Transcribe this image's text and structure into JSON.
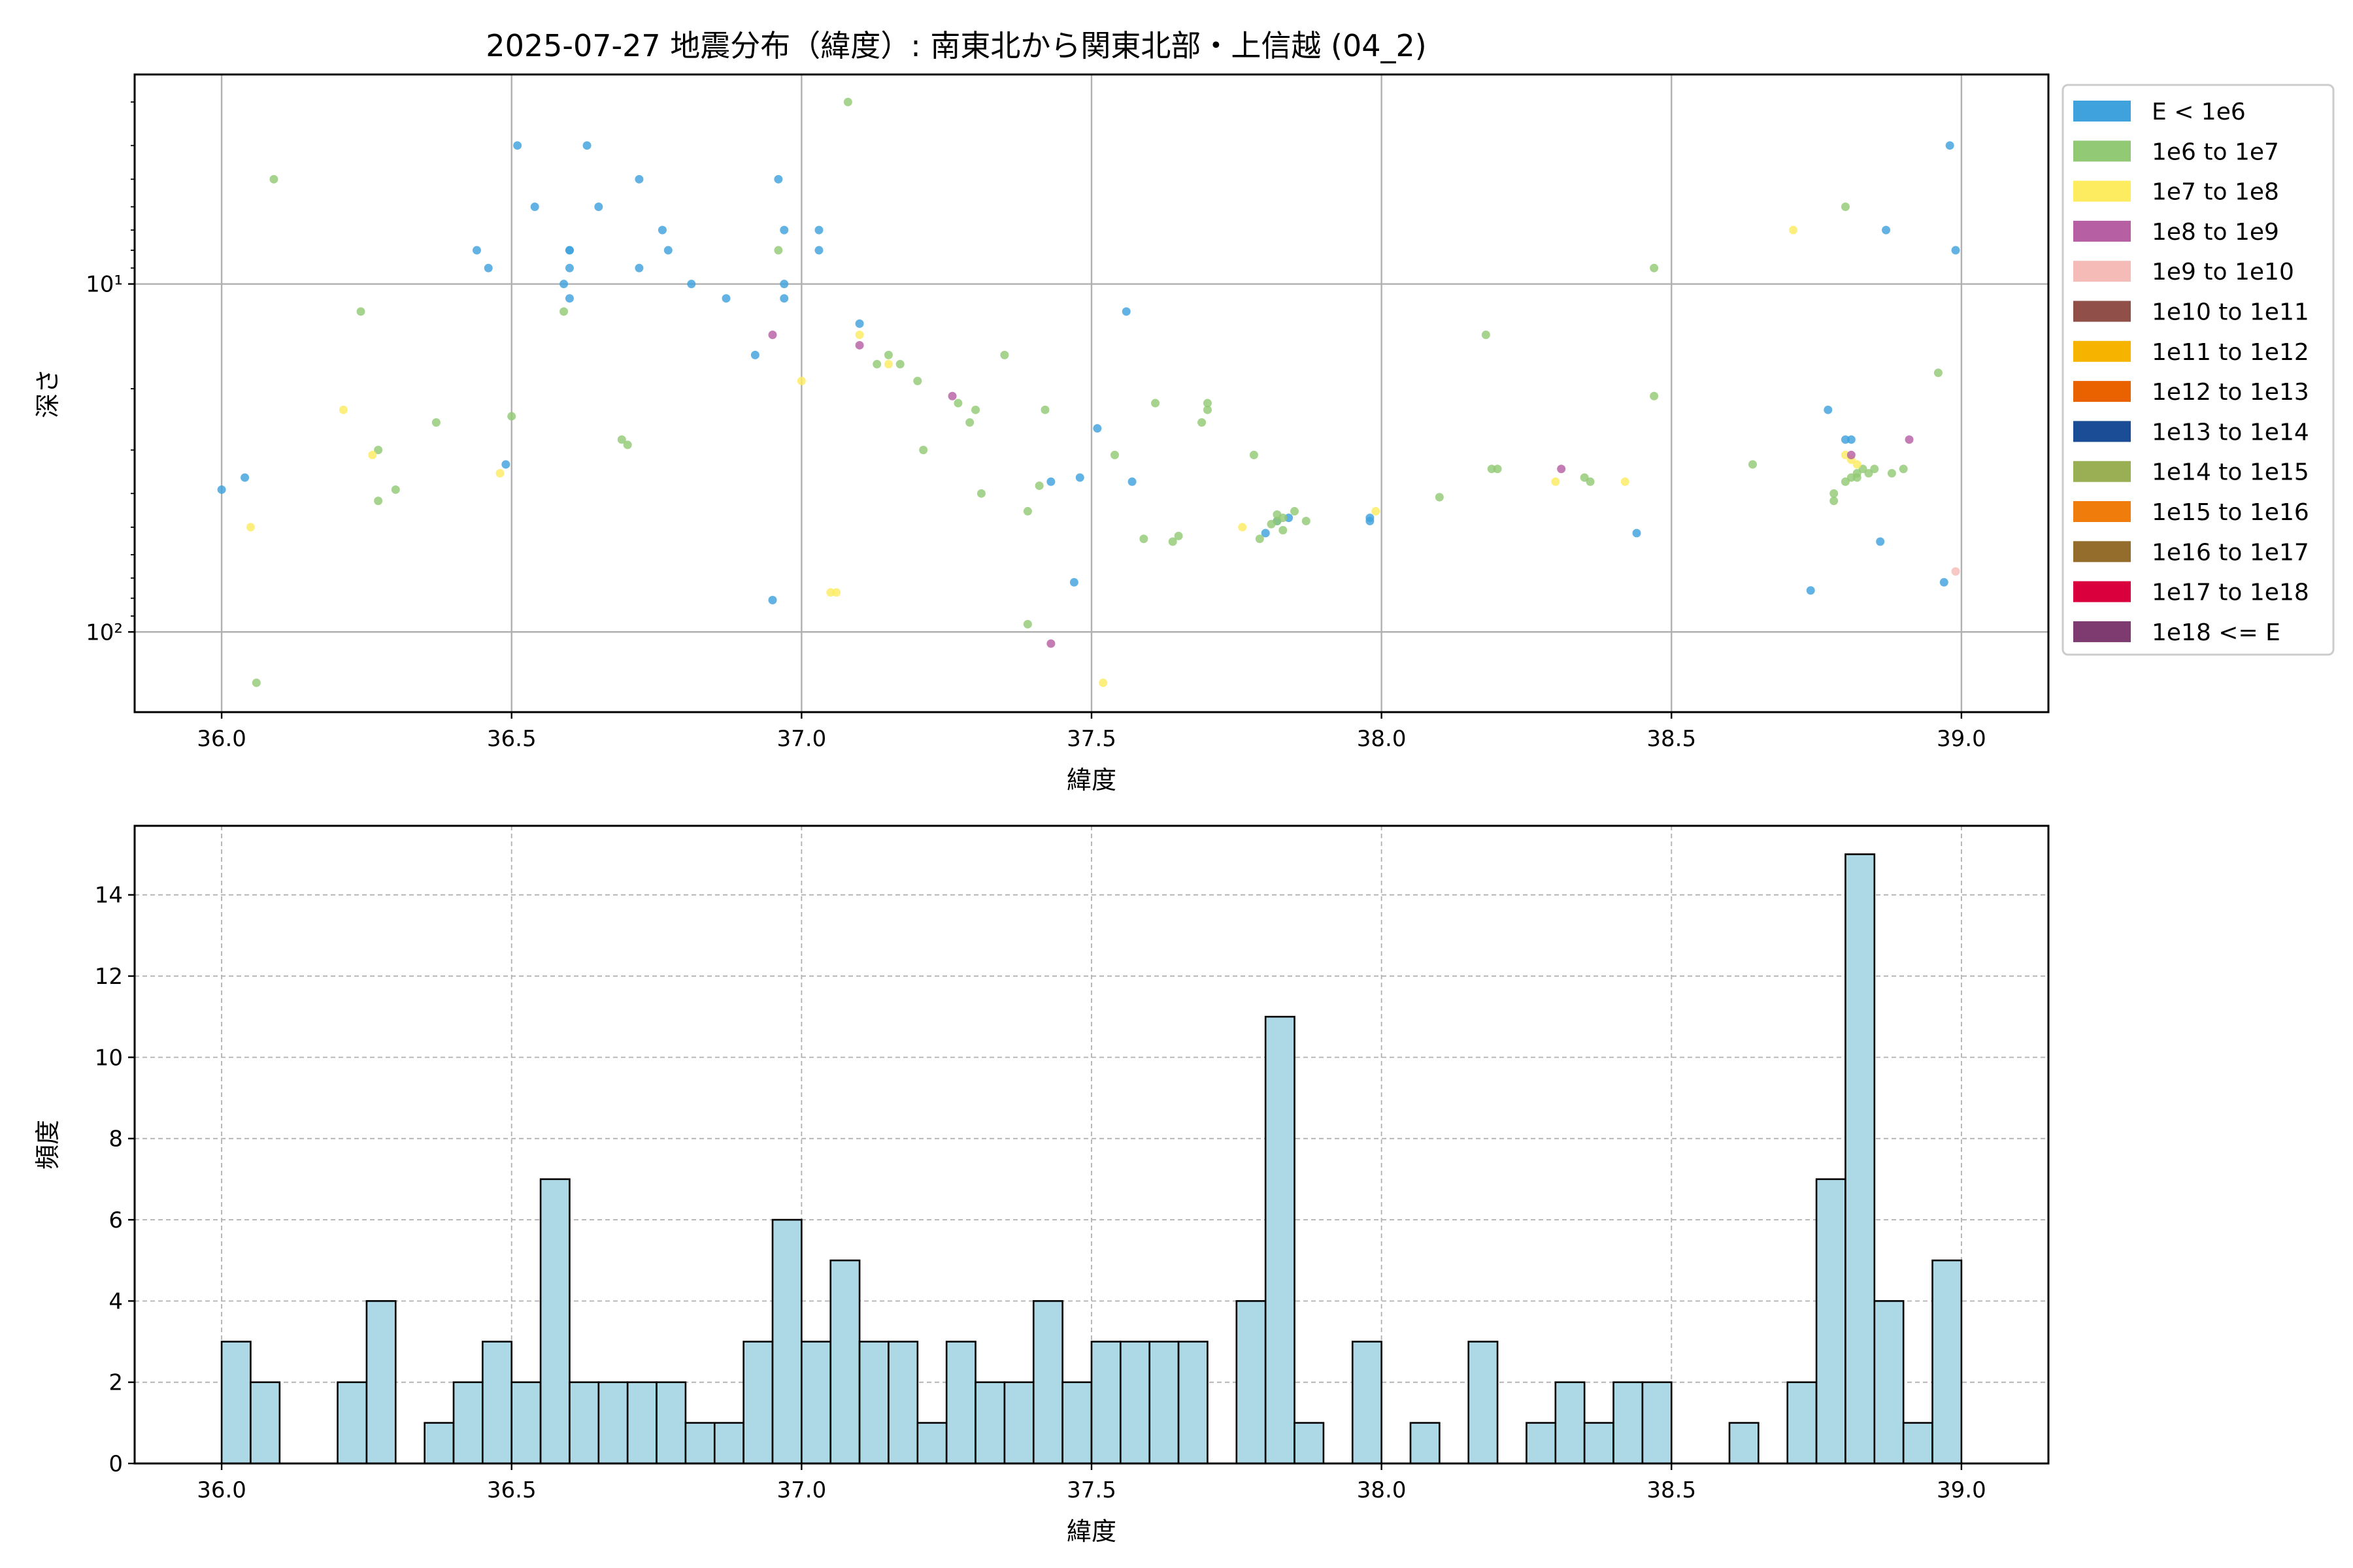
{
  "title": "2025-07-27 地震分布（緯度）: 南東北から関東北部・上信越 (04_2)",
  "chart_data": [
    {
      "type": "scatter",
      "xlabel": "緯度",
      "ylabel": "深さ",
      "yscale": "log",
      "yinverted": true,
      "xlim": [
        35.85,
        39.15
      ],
      "ylim": [
        170,
        2.5
      ],
      "grid": true,
      "legend_position": "right-outside",
      "x_ticks": [
        36.0,
        36.5,
        37.0,
        37.5,
        38.0,
        38.5,
        39.0
      ],
      "x_tick_labels": [
        "36.0",
        "36.5",
        "37.0",
        "37.5",
        "38.0",
        "38.5",
        "39.0"
      ],
      "y_ticks": [
        100,
        10
      ],
      "y_tick_labels": [
        "10²",
        "10¹"
      ],
      "legend": [
        {
          "label": "E < 1e6",
          "color": "#3fa2dd"
        },
        {
          "label": "1e6 to 1e7",
          "color": "#92c974"
        },
        {
          "label": "1e7 to 1e8",
          "color": "#fdec60"
        },
        {
          "label": "1e8 to 1e9",
          "color": "#b660a3"
        },
        {
          "label": "1e9 to 1e10",
          "color": "#f5bcb7"
        },
        {
          "label": "1e10 to 1e11",
          "color": "#914f4a"
        },
        {
          "label": "1e11 to 1e12",
          "color": "#f6b400"
        },
        {
          "label": "1e12 to 1e13",
          "color": "#ea6200"
        },
        {
          "label": "1e13 to 1e14",
          "color": "#1a4d96"
        },
        {
          "label": "1e14 to 1e15",
          "color": "#9aae54"
        },
        {
          "label": "1e15 to 1e16",
          "color": "#f07d0b"
        },
        {
          "label": "1e16 to 1e17",
          "color": "#946c2b"
        },
        {
          "label": "1e17 to 1e18",
          "color": "#d9003d"
        },
        {
          "label": "1e18 <= E",
          "color": "#7d3b70"
        }
      ],
      "series": [
        {
          "class": 0,
          "points": [
            [
              36.0,
              39
            ],
            [
              36.04,
              36
            ],
            [
              36.44,
              8
            ],
            [
              36.46,
              9
            ],
            [
              36.49,
              33
            ],
            [
              36.51,
              4
            ],
            [
              36.54,
              6
            ],
            [
              36.59,
              10
            ],
            [
              36.6,
              11
            ],
            [
              36.6,
              9
            ],
            [
              36.6,
              8
            ],
            [
              36.6,
              8
            ],
            [
              36.63,
              4
            ],
            [
              36.65,
              6
            ],
            [
              36.72,
              9
            ],
            [
              36.72,
              5
            ],
            [
              36.76,
              7
            ],
            [
              36.77,
              8
            ],
            [
              36.81,
              10
            ],
            [
              36.87,
              11
            ],
            [
              36.92,
              16
            ],
            [
              36.95,
              81
            ],
            [
              36.96,
              5
            ],
            [
              36.97,
              7
            ],
            [
              36.97,
              10
            ],
            [
              36.97,
              11
            ],
            [
              37.03,
              7
            ],
            [
              37.03,
              8
            ],
            [
              37.1,
              13
            ],
            [
              37.43,
              37
            ],
            [
              37.47,
              72
            ],
            [
              37.48,
              36
            ],
            [
              37.51,
              26
            ],
            [
              37.56,
              12
            ],
            [
              37.57,
              37
            ],
            [
              37.8,
              52
            ],
            [
              37.82,
              48
            ],
            [
              37.84,
              47
            ],
            [
              37.98,
              48
            ],
            [
              37.98,
              47
            ],
            [
              38.44,
              52
            ],
            [
              38.74,
              76
            ],
            [
              38.77,
              23
            ],
            [
              38.8,
              28
            ],
            [
              38.81,
              28
            ],
            [
              38.86,
              55
            ],
            [
              38.87,
              7
            ],
            [
              38.97,
              72
            ],
            [
              38.98,
              4
            ],
            [
              38.99,
              8
            ]
          ]
        },
        {
          "class": 1,
          "points": [
            [
              36.06,
              140
            ],
            [
              36.09,
              5
            ],
            [
              36.24,
              12
            ],
            [
              36.27,
              42
            ],
            [
              36.27,
              30
            ],
            [
              36.3,
              39
            ],
            [
              36.37,
              25
            ],
            [
              36.5,
              24
            ],
            [
              36.59,
              12
            ],
            [
              36.69,
              28
            ],
            [
              36.7,
              29
            ],
            [
              36.96,
              8
            ],
            [
              37.08,
              3
            ],
            [
              37.13,
              17
            ],
            [
              37.15,
              16
            ],
            [
              37.17,
              17
            ],
            [
              37.2,
              19
            ],
            [
              37.21,
              30
            ],
            [
              37.27,
              22
            ],
            [
              37.29,
              25
            ],
            [
              37.3,
              23
            ],
            [
              37.31,
              40
            ],
            [
              37.35,
              16
            ],
            [
              37.39,
              95
            ],
            [
              37.39,
              45
            ],
            [
              37.41,
              38
            ],
            [
              37.42,
              23
            ],
            [
              37.54,
              31
            ],
            [
              37.59,
              54
            ],
            [
              37.61,
              22
            ],
            [
              37.64,
              55
            ],
            [
              37.65,
              53
            ],
            [
              37.69,
              25
            ],
            [
              37.7,
              23
            ],
            [
              37.7,
              22
            ],
            [
              37.78,
              31
            ],
            [
              37.79,
              54
            ],
            [
              37.81,
              49
            ],
            [
              37.82,
              46
            ],
            [
              37.82,
              48
            ],
            [
              37.83,
              51
            ],
            [
              37.83,
              47
            ],
            [
              37.85,
              45
            ],
            [
              37.87,
              48
            ],
            [
              38.1,
              41
            ],
            [
              38.18,
              14
            ],
            [
              38.19,
              34
            ],
            [
              38.2,
              34
            ],
            [
              38.35,
              36
            ],
            [
              38.36,
              37
            ],
            [
              38.47,
              9
            ],
            [
              38.47,
              21
            ],
            [
              38.64,
              33
            ],
            [
              38.78,
              40
            ],
            [
              38.78,
              42
            ],
            [
              38.8,
              37
            ],
            [
              38.8,
              6
            ],
            [
              38.81,
              36
            ],
            [
              38.82,
              35
            ],
            [
              38.82,
              36
            ],
            [
              38.83,
              34
            ],
            [
              38.84,
              35
            ],
            [
              38.85,
              34
            ],
            [
              38.88,
              35
            ],
            [
              38.9,
              34
            ],
            [
              38.96,
              18
            ]
          ]
        },
        {
          "class": 2,
          "points": [
            [
              36.05,
              50
            ],
            [
              36.21,
              23
            ],
            [
              36.26,
              31
            ],
            [
              36.48,
              35
            ],
            [
              37.0,
              19
            ],
            [
              37.05,
              77
            ],
            [
              37.06,
              77
            ],
            [
              37.1,
              14
            ],
            [
              37.15,
              17
            ],
            [
              37.52,
              140
            ],
            [
              37.76,
              50
            ],
            [
              37.99,
              45
            ],
            [
              38.3,
              37
            ],
            [
              38.42,
              37
            ],
            [
              38.71,
              7
            ],
            [
              38.8,
              31
            ],
            [
              38.81,
              32
            ],
            [
              38.82,
              33
            ]
          ]
        },
        {
          "class": 3,
          "points": [
            [
              36.95,
              14
            ],
            [
              37.1,
              15
            ],
            [
              37.26,
              21
            ],
            [
              37.43,
              108
            ],
            [
              38.31,
              34
            ],
            [
              38.81,
              31
            ],
            [
              38.91,
              28
            ]
          ]
        },
        {
          "class": 4,
          "points": [
            [
              38.99,
              67
            ]
          ]
        }
      ]
    },
    {
      "type": "bar",
      "xlabel": "緯度",
      "ylabel": "頻度",
      "xlim": [
        35.85,
        39.15
      ],
      "ylim": [
        0,
        15.7
      ],
      "grid": true,
      "bar_color": "#add8e6",
      "x_ticks": [
        36.0,
        36.5,
        37.0,
        37.5,
        38.0,
        38.5,
        39.0
      ],
      "x_tick_labels": [
        "36.0",
        "36.5",
        "37.0",
        "37.5",
        "38.0",
        "38.5",
        "39.0"
      ],
      "y_ticks": [
        0,
        2,
        4,
        6,
        8,
        10,
        12,
        14
      ],
      "y_tick_labels": [
        "0",
        "2",
        "4",
        "6",
        "8",
        "10",
        "12",
        "14"
      ],
      "bin_start": 36.0,
      "bin_width": 0.05,
      "values": [
        3,
        2,
        0,
        0,
        2,
        4,
        0,
        1,
        2,
        3,
        2,
        7,
        2,
        2,
        2,
        2,
        1,
        1,
        3,
        6,
        3,
        5,
        3,
        3,
        1,
        3,
        2,
        2,
        4,
        2,
        3,
        3,
        3,
        3,
        0,
        4,
        11,
        1,
        0,
        3,
        0,
        1,
        0,
        3,
        0,
        1,
        2,
        1,
        2,
        2,
        0,
        0,
        1,
        0,
        2,
        7,
        15,
        4,
        1,
        5
      ]
    }
  ]
}
